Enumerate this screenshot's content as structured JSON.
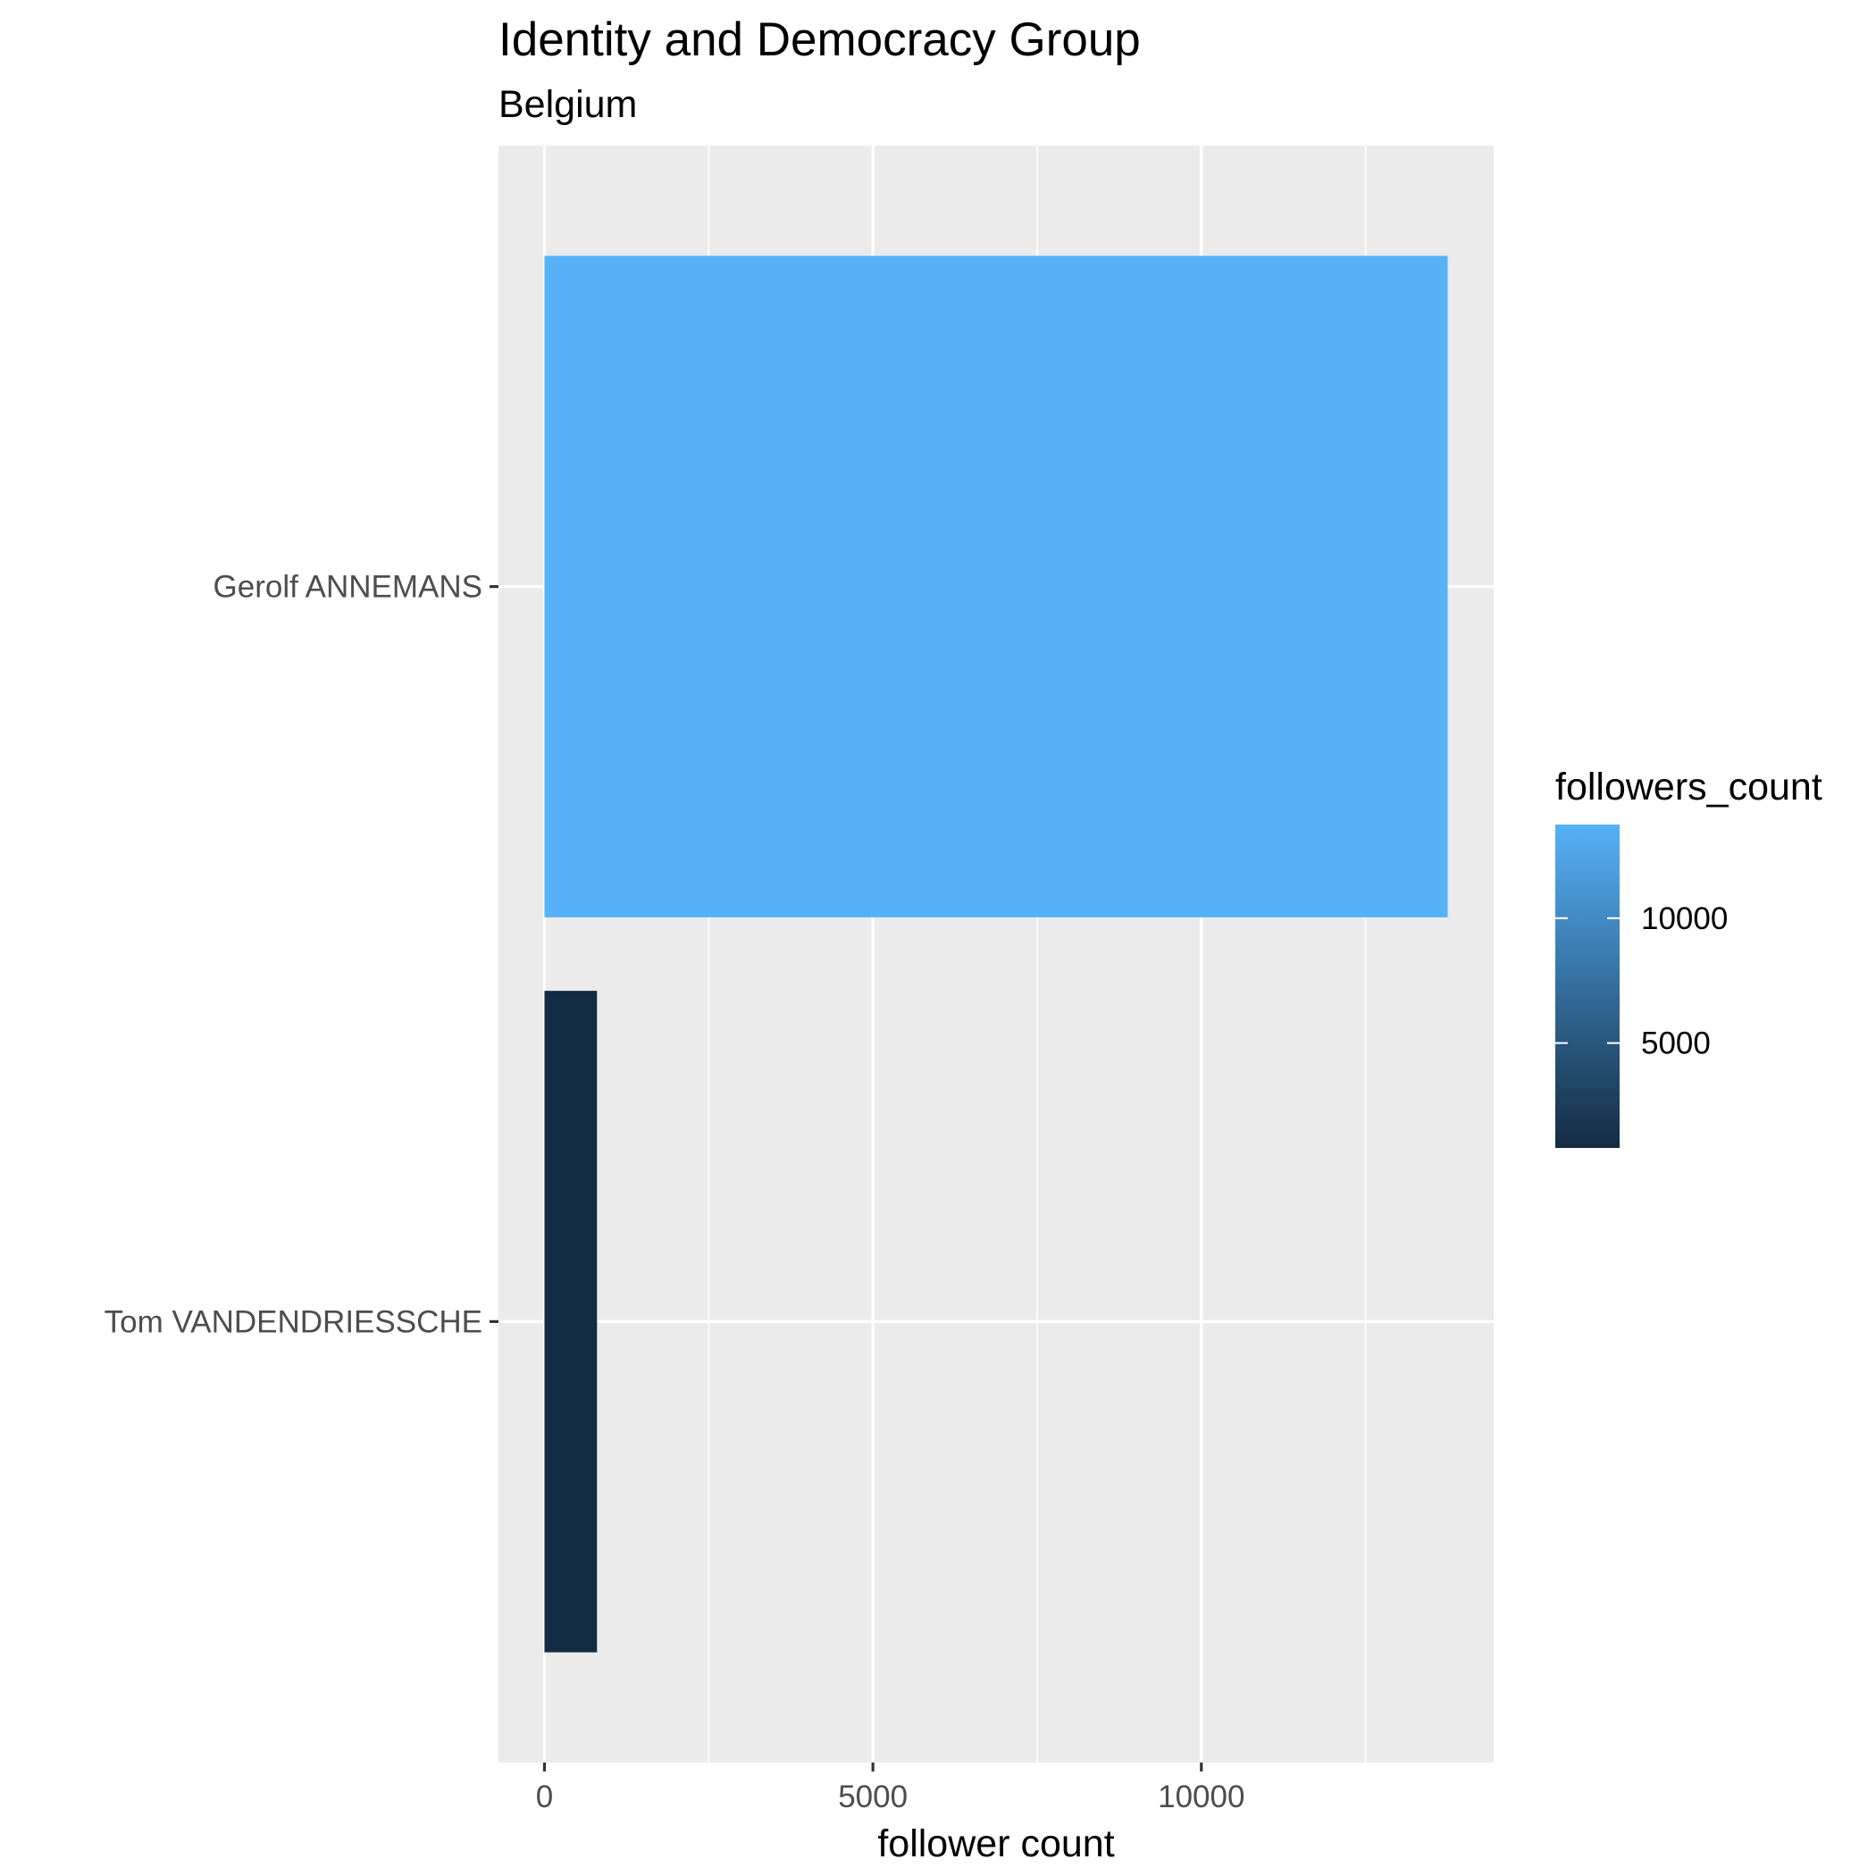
{
  "chart_data": {
    "type": "bar",
    "orientation": "horizontal",
    "title": "Identity and Democracy Group",
    "subtitle": "Belgium",
    "xlabel": "follower count",
    "ylabel": "",
    "categories": [
      "Gerolf ANNEMANS",
      "Tom VANDENDRIESSCHE"
    ],
    "values": [
      13750,
      800
    ],
    "xlim": [
      -700,
      14450
    ],
    "x_ticks": [
      0,
      5000,
      10000
    ],
    "x_tick_labels": [
      "0",
      "5000",
      "10000"
    ],
    "grid": true,
    "legend": {
      "title": "followers_count",
      "placement": "right",
      "type": "colorbar",
      "range": [
        800,
        13750
      ],
      "ticks": [
        5000,
        10000
      ],
      "tick_labels": [
        "5000",
        "10000"
      ],
      "color_low": "#132B43",
      "color_high": "#56B1F7"
    },
    "colors": {
      "panel_background": "#EBEBEB",
      "grid": "#FFFFFF",
      "tick": "#333333"
    }
  }
}
